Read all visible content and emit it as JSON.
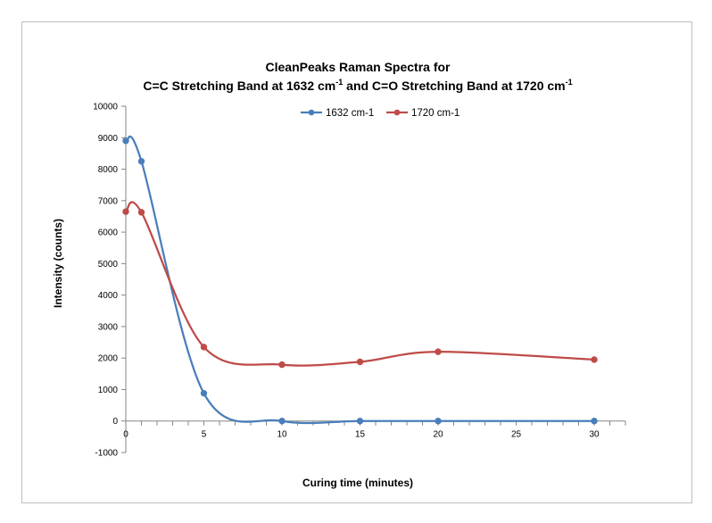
{
  "chart_data": {
    "type": "line",
    "title_line1": "CleanPeaks Raman Spectra for",
    "title_line2_parts": [
      "C=C Stretching Band at 1632 cm",
      "-1",
      " and C=O Stretching Band at 1720 cm",
      "-1"
    ],
    "xlabel": "Curing time (minutes)",
    "ylabel": "Intensity (counts)",
    "xlim": [
      0,
      32
    ],
    "ylim": [
      -1000,
      10000
    ],
    "x_ticks": [
      0,
      5,
      10,
      15,
      20,
      25,
      30
    ],
    "y_ticks": [
      -1000,
      0,
      1000,
      2000,
      3000,
      4000,
      5000,
      6000,
      7000,
      8000,
      9000,
      10000
    ],
    "smoothed": true,
    "grid": false,
    "legend_position": "top",
    "series": [
      {
        "name": "1632 cm-1",
        "color": "#4a7ebb",
        "x": [
          0,
          1,
          5,
          10,
          15,
          20,
          30
        ],
        "y": [
          8900,
          8250,
          880,
          0,
          0,
          0,
          0
        ]
      },
      {
        "name": "1720 cm-1",
        "color": "#be4b48",
        "x": [
          0,
          1,
          5,
          10,
          15,
          20,
          30
        ],
        "y": [
          6650,
          6630,
          2350,
          1790,
          1880,
          2200,
          1950
        ]
      }
    ]
  }
}
